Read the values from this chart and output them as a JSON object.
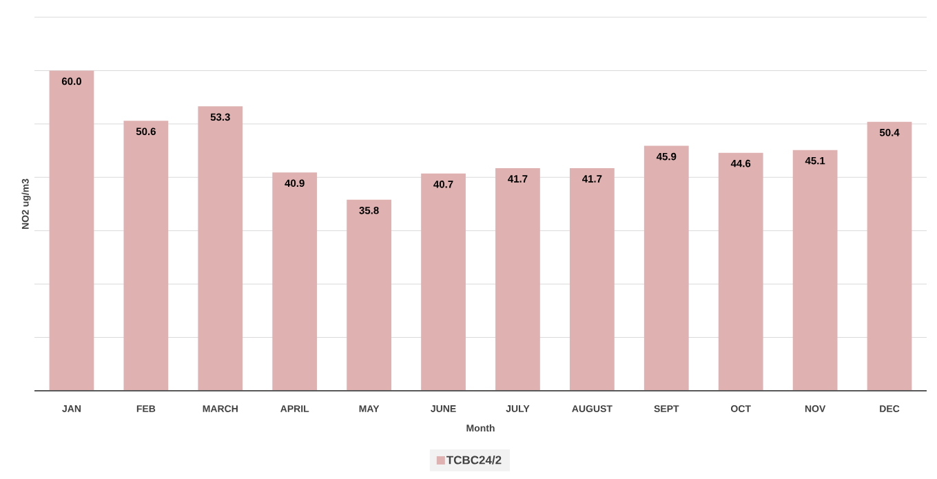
{
  "chart_data": {
    "type": "bar",
    "xlabel": "Month",
    "ylabel": "NO2 ug/m3",
    "categories": [
      "JAN",
      "FEB",
      "MARCH",
      "APRIL",
      "MAY",
      "JUNE",
      "JULY",
      "AUGUST",
      "SEPT",
      "OCT",
      "NOV",
      "DEC"
    ],
    "series": [
      {
        "name": "TCBC24/2",
        "color": "#dfb1b1",
        "values": [
          60.0,
          50.6,
          53.3,
          40.9,
          35.8,
          40.7,
          41.7,
          41.7,
          45.9,
          44.6,
          45.1,
          50.4
        ],
        "value_labels": [
          "60.0",
          "50.6",
          "53.3",
          "40.9",
          "35.8",
          "40.7",
          "41.7",
          "41.7",
          "45.9",
          "44.6",
          "45.1",
          "50.4"
        ]
      }
    ],
    "ylim": [
      0,
      70
    ],
    "yticks": [
      {
        "value": 0,
        "label": null
      },
      {
        "value": 10,
        "label": null
      },
      {
        "value": 20,
        "label": null
      },
      {
        "value": 30,
        "label": null
      },
      {
        "value": 40,
        "label": null
      },
      {
        "value": 50,
        "label": null
      },
      {
        "value": 60,
        "label": null
      },
      {
        "value": 70,
        "label": null
      }
    ],
    "grid": "y",
    "legend": "bottom",
    "tick_labels": "x"
  }
}
